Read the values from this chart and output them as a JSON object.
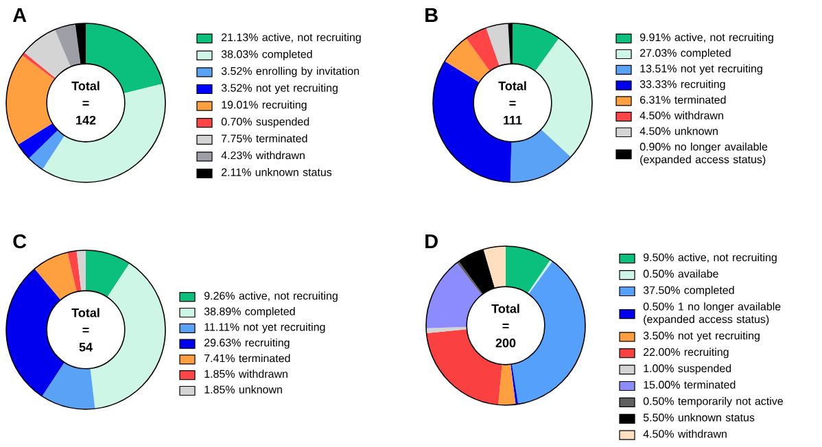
{
  "chart_data": [
    {
      "type": "donut",
      "title": "A",
      "legend": "right",
      "annotations": [
        "Total",
        "=",
        "142"
      ],
      "categories": [
        "21.13% active, not recruiting",
        "38.03% completed",
        "3.52% enrolling by invitation",
        "3.52% not yet recruiting",
        "19.01% recruiting",
        "0.70% suspended",
        "7.75% terminated",
        "4.23% withdrawn",
        "2.11% unknown status"
      ],
      "values": [
        21.13,
        38.03,
        3.52,
        3.52,
        19.01,
        0.7,
        7.75,
        4.23,
        2.11
      ],
      "colors": [
        "#0bbf7d",
        "#cdf6e6",
        "#5aa2f5",
        "#0000ff",
        "#ffa040",
        "#ff4545",
        "#d4d4d4",
        "#9e9ea6",
        "#000000"
      ]
    },
    {
      "type": "donut",
      "title": "B",
      "legend": "right",
      "annotations": [
        "Total",
        "=",
        "111"
      ],
      "categories": [
        "9.91% active, not recruiting",
        "27.03% completed",
        "13.51% not yet recruiting",
        "33.33% recruiting",
        "6.31% terminated",
        "4.50% withdrawn",
        "4.50% unknown",
        "0.90% no longer available (expanded access status)"
      ],
      "values": [
        9.91,
        27.03,
        13.51,
        33.33,
        6.31,
        4.5,
        4.5,
        0.9
      ],
      "colors": [
        "#0bbf7d",
        "#cdf6e6",
        "#5aa2f5",
        "#0000ee",
        "#ffa040",
        "#ff4545",
        "#d4d4d4",
        "#000000"
      ]
    },
    {
      "type": "donut",
      "title": "C",
      "legend": "right",
      "annotations": [
        "Total",
        "=",
        "54"
      ],
      "categories": [
        "9.26% active, not recruiting",
        "38.89% completed",
        "11.11% not yet recruiting",
        "29.63% recruiting",
        "7.41% terminated",
        "1.85% withdrawn",
        "1.85% unknown"
      ],
      "values": [
        9.26,
        38.89,
        11.11,
        29.63,
        7.41,
        1.85,
        1.85
      ],
      "colors": [
        "#0bbf7d",
        "#cdf6e6",
        "#5aa2f5",
        "#0000ee",
        "#ffa040",
        "#ff4545",
        "#d4d4d4"
      ]
    },
    {
      "type": "donut",
      "title": "D",
      "legend": "right",
      "annotations": [
        "Total",
        "=",
        "200"
      ],
      "categories": [
        "9.50% active, not recruiting",
        "0.50% availabe",
        "37.50% completed",
        "0.50% 1 no longer available (expanded access status)",
        "3.50% not yet recruiting",
        "22.00% recruiting",
        "1.00% suspended",
        "15.00% terminated",
        "0.50% temporarily not active",
        "5.50% unknown status",
        "4.50% withdrawn"
      ],
      "values": [
        9.5,
        0.5,
        37.5,
        0.5,
        3.5,
        22.0,
        1.0,
        15.0,
        0.5,
        5.5,
        4.5
      ],
      "colors": [
        "#0bbf7d",
        "#cdf6e6",
        "#55a0fa",
        "#0000ee",
        "#ffa040",
        "#fa4040",
        "#d4d4d4",
        "#8c8cff",
        "#606060",
        "#000000",
        "#ffdfc0"
      ]
    }
  ]
}
